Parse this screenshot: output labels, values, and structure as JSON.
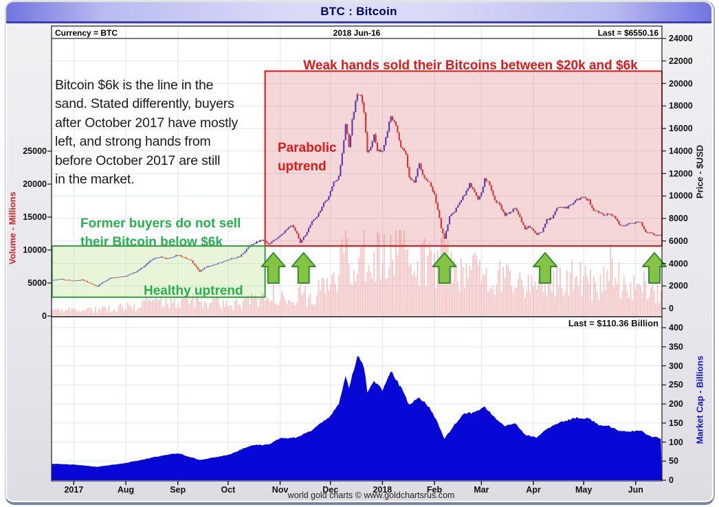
{
  "window": {
    "title": "BTC : Bitcoin"
  },
  "header": {
    "currency": "Currency = BTC",
    "date": "2018 Jun-16",
    "last_price": "Last = $6550.16"
  },
  "annotations": {
    "weak_hands": "Weak hands sold their Bitcoins between $20k and $6k",
    "paragraph": "Bitcoin $6k is the line in the\nsand. Stated differently, buyers\nafter October 2017 have mostly\nleft, and strong hands from\nbefore October 2017 are still\nin the market.",
    "parabolic": "Parabolic\nuptrend",
    "former_buyers": "Former buyers do not sell\ntheir Bitcoin below $6k",
    "healthy": "Healthy uptrend"
  },
  "axes": {
    "price": {
      "label": "Price - $USD",
      "min": 0,
      "max": 24000,
      "step": 2000
    },
    "volume": {
      "label": "Volume - Millions",
      "min": 0,
      "max": 25000,
      "step": 5000
    },
    "mcap": {
      "label": "Market Cap - Billions",
      "min": 0,
      "max": 400,
      "step": 50,
      "last": "Last = $110.36 Billion"
    }
  },
  "footer": "world gold charts © www.goldchartsrus.com",
  "colors": {
    "title_text": "#00006a",
    "up_candle": "#2121cd",
    "down_candle": "#dd1414",
    "wick": "#463a32",
    "volume_bar": "rgba(238,150,150,0.55)",
    "mcap_fill": "#0707d6",
    "grid": "#dce7f3",
    "red_annotation": "#e21717",
    "green_annotation": "#27b04e",
    "red_box_fill": "rgba(223,121,121,0.30)",
    "red_box_stroke": "#e01212",
    "green_box_fill": "rgba(186,223,136,0.32)",
    "green_box_stroke": "#2e9e40",
    "arrow_fill": "#85c443",
    "arrow_stroke": "#2f8f2f",
    "axis_text": "#111111",
    "mcap_axis_text": "#1515d0"
  },
  "chart_data": {
    "type": "candlestick+volume+area",
    "title": "BTC : Bitcoin",
    "x_axis": {
      "note": "day 0 = 2017-Jul-01, last day 350 = 2018-Jun-16",
      "month_ticks": [
        {
          "label": "2017",
          "day": 0
        },
        {
          "label": "Aug",
          "day": 31
        },
        {
          "label": "Sep",
          "day": 62
        },
        {
          "label": "Oct",
          "day": 92
        },
        {
          "label": "Nov",
          "day": 123
        },
        {
          "label": "Dec",
          "day": 153
        },
        {
          "label": "2018",
          "day": 184
        },
        {
          "label": "Feb",
          "day": 215
        },
        {
          "label": "Mar",
          "day": 243
        },
        {
          "label": "Apr",
          "day": 274
        },
        {
          "label": "May",
          "day": 304
        },
        {
          "label": "Jun",
          "day": 335
        }
      ],
      "day_range": [
        -13,
        350
      ]
    },
    "price_series": {
      "name": "BTC price (USD), daily candles",
      "last_value": 6550.16,
      "keyframes": [
        [
          -13,
          2520
        ],
        [
          -8,
          2620
        ],
        [
          0,
          2450
        ],
        [
          5,
          2560
        ],
        [
          14,
          1960
        ],
        [
          17,
          2320
        ],
        [
          22,
          2720
        ],
        [
          31,
          2860
        ],
        [
          38,
          3320
        ],
        [
          45,
          4160
        ],
        [
          47,
          4360
        ],
        [
          52,
          4610
        ],
        [
          55,
          4390
        ],
        [
          62,
          4760
        ],
        [
          70,
          4260
        ],
        [
          75,
          3240
        ],
        [
          78,
          3660
        ],
        [
          85,
          3960
        ],
        [
          92,
          4360
        ],
        [
          99,
          4610
        ],
        [
          106,
          5720
        ],
        [
          113,
          6120
        ],
        [
          116,
          5660
        ],
        [
          120,
          6160
        ],
        [
          123,
          6460
        ],
        [
          127,
          7060
        ],
        [
          130,
          7410
        ],
        [
          133,
          6610
        ],
        [
          135,
          5860
        ],
        [
          138,
          6560
        ],
        [
          142,
          7810
        ],
        [
          145,
          8160
        ],
        [
          149,
          9310
        ],
        [
          152,
          9910
        ],
        [
          155,
          11210
        ],
        [
          158,
          11710
        ],
        [
          160,
          13710
        ],
        [
          162,
          16510
        ],
        [
          164,
          14310
        ],
        [
          166,
          16710
        ],
        [
          169,
          19210
        ],
        [
          171,
          18910
        ],
        [
          173,
          17510
        ],
        [
          175,
          13810
        ],
        [
          177,
          14510
        ],
        [
          179,
          15510
        ],
        [
          181,
          14110
        ],
        [
          184,
          14010
        ],
        [
          186,
          15110
        ],
        [
          189,
          17110
        ],
        [
          192,
          16210
        ],
        [
          195,
          14310
        ],
        [
          198,
          13610
        ],
        [
          200,
          11610
        ],
        [
          203,
          11210
        ],
        [
          206,
          12910
        ],
        [
          209,
          11510
        ],
        [
          212,
          11210
        ],
        [
          215,
          10110
        ],
        [
          217,
          8810
        ],
        [
          219,
          7110
        ],
        [
          221,
          6210
        ],
        [
          224,
          8210
        ],
        [
          227,
          8610
        ],
        [
          230,
          9410
        ],
        [
          233,
          10210
        ],
        [
          236,
          11110
        ],
        [
          239,
          10410
        ],
        [
          241,
          9710
        ],
        [
          243,
          10310
        ],
        [
          245,
          11510
        ],
        [
          248,
          11010
        ],
        [
          251,
          9610
        ],
        [
          254,
          9210
        ],
        [
          257,
          8310
        ],
        [
          260,
          8510
        ],
        [
          263,
          8910
        ],
        [
          266,
          8110
        ],
        [
          269,
          7010
        ],
        [
          271,
          7410
        ],
        [
          274,
          6910
        ],
        [
          276,
          6610
        ],
        [
          279,
          6810
        ],
        [
          282,
          7910
        ],
        [
          285,
          8010
        ],
        [
          288,
          8910
        ],
        [
          291,
          9010
        ],
        [
          294,
          8910
        ],
        [
          297,
          9310
        ],
        [
          300,
          9710
        ],
        [
          304,
          9860
        ],
        [
          307,
          9610
        ],
        [
          310,
          8710
        ],
        [
          313,
          8510
        ],
        [
          316,
          8310
        ],
        [
          319,
          8410
        ],
        [
          322,
          8210
        ],
        [
          325,
          7510
        ],
        [
          328,
          7310
        ],
        [
          331,
          7510
        ],
        [
          335,
          7610
        ],
        [
          338,
          7660
        ],
        [
          341,
          6810
        ],
        [
          344,
          6710
        ],
        [
          347,
          6510
        ],
        [
          350,
          6550
        ]
      ]
    },
    "volume_series": {
      "name": "Volume (millions)",
      "keyframes": [
        [
          -13,
          800
        ],
        [
          0,
          900
        ],
        [
          20,
          1100
        ],
        [
          31,
          1400
        ],
        [
          50,
          2200
        ],
        [
          62,
          1900
        ],
        [
          75,
          2600
        ],
        [
          92,
          1500
        ],
        [
          106,
          2300
        ],
        [
          116,
          3400
        ],
        [
          123,
          2800
        ],
        [
          133,
          3600
        ],
        [
          142,
          3100
        ],
        [
          153,
          4800
        ],
        [
          160,
          7600
        ],
        [
          162,
          9800
        ],
        [
          166,
          8300
        ],
        [
          171,
          9500
        ],
        [
          175,
          12200
        ],
        [
          179,
          9000
        ],
        [
          184,
          8200
        ],
        [
          189,
          9300
        ],
        [
          195,
          10100
        ],
        [
          198,
          8300
        ],
        [
          203,
          7300
        ],
        [
          209,
          7900
        ],
        [
          215,
          8600
        ],
        [
          219,
          11000
        ],
        [
          221,
          9400
        ],
        [
          227,
          7300
        ],
        [
          236,
          7800
        ],
        [
          243,
          6100
        ],
        [
          251,
          5300
        ],
        [
          257,
          6800
        ],
        [
          263,
          5400
        ],
        [
          271,
          4800
        ],
        [
          279,
          5700
        ],
        [
          285,
          5100
        ],
        [
          291,
          5600
        ],
        [
          300,
          5900
        ],
        [
          304,
          5300
        ],
        [
          310,
          4600
        ],
        [
          316,
          5300
        ],
        [
          322,
          8800
        ],
        [
          325,
          6100
        ],
        [
          331,
          4200
        ],
        [
          335,
          4600
        ],
        [
          341,
          5200
        ],
        [
          347,
          4100
        ],
        [
          350,
          3900
        ]
      ]
    },
    "market_cap_series": {
      "name": "Market cap (billions USD)",
      "last_value": 110.36,
      "keyframes": [
        [
          -13,
          43
        ],
        [
          0,
          41
        ],
        [
          14,
          35
        ],
        [
          31,
          45
        ],
        [
          52,
          64
        ],
        [
          62,
          71
        ],
        [
          75,
          53
        ],
        [
          92,
          66
        ],
        [
          106,
          92
        ],
        [
          116,
          93
        ],
        [
          123,
          110
        ],
        [
          133,
          112
        ],
        [
          142,
          131
        ],
        [
          152,
          166
        ],
        [
          158,
          198
        ],
        [
          162,
          276
        ],
        [
          164,
          242
        ],
        [
          169,
          322
        ],
        [
          171,
          318
        ],
        [
          173,
          296
        ],
        [
          175,
          233
        ],
        [
          179,
          262
        ],
        [
          184,
          237
        ],
        [
          189,
          288
        ],
        [
          195,
          243
        ],
        [
          200,
          197
        ],
        [
          206,
          218
        ],
        [
          212,
          191
        ],
        [
          217,
          151
        ],
        [
          221,
          108
        ],
        [
          227,
          146
        ],
        [
          233,
          175
        ],
        [
          239,
          177
        ],
        [
          245,
          194
        ],
        [
          251,
          163
        ],
        [
          257,
          142
        ],
        [
          263,
          150
        ],
        [
          269,
          119
        ],
        [
          276,
          112
        ],
        [
          282,
          134
        ],
        [
          291,
          153
        ],
        [
          300,
          164
        ],
        [
          307,
          162
        ],
        [
          313,
          145
        ],
        [
          319,
          143
        ],
        [
          325,
          128
        ],
        [
          331,
          128
        ],
        [
          338,
          130
        ],
        [
          344,
          114
        ],
        [
          350,
          110
        ]
      ]
    },
    "highlight_regions": {
      "red_box": {
        "day_start": 114,
        "day_end": 351,
        "price_top": 21100,
        "price_bottom": 5550
      },
      "green_box": {
        "day_start": -13,
        "day_end": 114,
        "price_top": 5550,
        "price_bottom": 1000
      }
    },
    "arrow_marker_days": [
      119,
      137,
      221,
      281,
      347
    ]
  }
}
